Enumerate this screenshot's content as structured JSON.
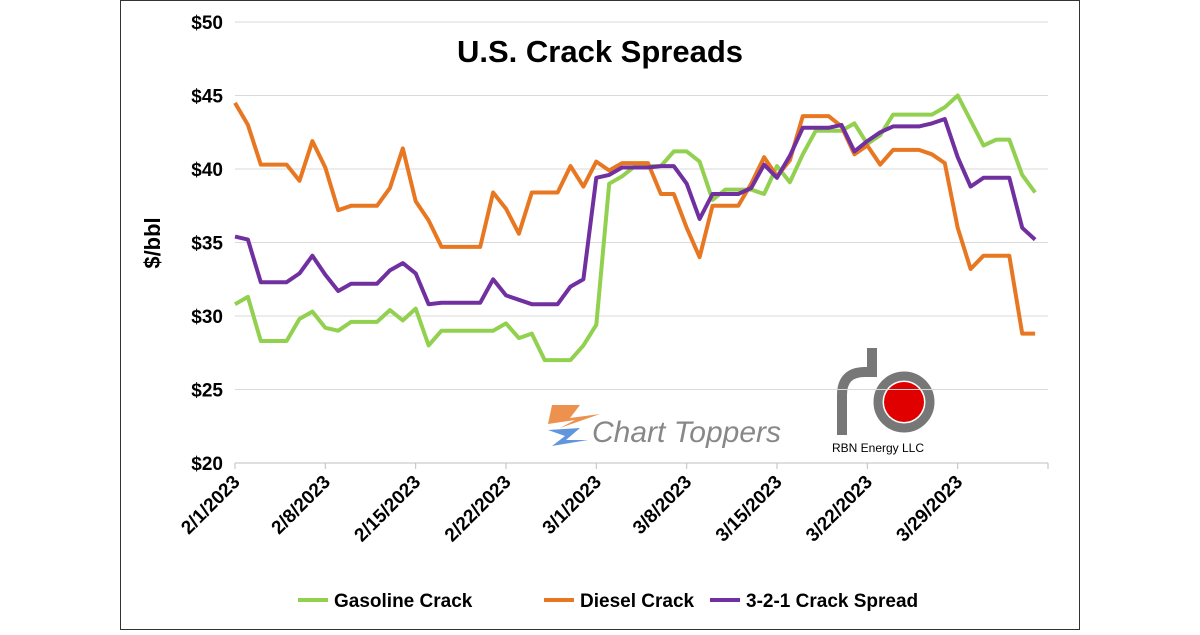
{
  "chart_data": {
    "type": "line",
    "title": "U.S. Crack Spreads",
    "y_label": "$/bbl",
    "logos": [
      "Chart Toppers",
      "RBN Energy LLC"
    ],
    "categories": [
      "2/1/2023",
      null,
      null,
      null,
      null,
      null,
      null,
      "2/8/2023",
      null,
      null,
      null,
      null,
      null,
      null,
      "2/15/2023",
      null,
      null,
      null,
      null,
      null,
      null,
      "2/22/2023",
      null,
      null,
      null,
      null,
      null,
      null,
      "3/1/2023",
      null,
      null,
      null,
      null,
      null,
      null,
      "3/8/2023",
      null,
      null,
      null,
      null,
      null,
      null,
      "3/15/2023",
      null,
      null,
      null,
      null,
      null,
      null,
      "3/22/2023",
      null,
      null,
      null,
      null,
      null,
      null,
      "3/29/2023",
      null,
      null,
      null,
      null,
      null,
      null
    ],
    "ylim": [
      20,
      50
    ],
    "yticks": [
      {
        "value": 20,
        "label": "$20"
      },
      {
        "value": 25,
        "label": "$25"
      },
      {
        "value": 30,
        "label": "$30"
      },
      {
        "value": 35,
        "label": "$35"
      },
      {
        "value": 40,
        "label": "$40"
      },
      {
        "value": 45,
        "label": "$45"
      },
      {
        "value": 50,
        "label": "$50"
      }
    ],
    "grid": true,
    "series": [
      {
        "name": "Gasoline Crack",
        "color": "#92d050",
        "values": [
          30.8,
          31.3,
          28.3,
          28.3,
          28.3,
          29.8,
          30.3,
          29.2,
          29.0,
          29.6,
          29.6,
          29.6,
          30.4,
          29.7,
          30.5,
          28.0,
          29.0,
          29.0,
          29.0,
          29.0,
          29.0,
          29.5,
          28.5,
          28.8,
          27.0,
          27.0,
          27.0,
          28.0,
          29.4,
          39.0,
          39.5,
          40.2,
          40.2,
          40.2,
          41.2,
          41.2,
          40.5,
          37.9,
          38.6,
          38.6,
          38.6,
          38.3,
          40.2,
          39.1,
          41.0,
          42.6,
          42.6,
          42.6,
          43.1,
          41.7,
          42.3,
          43.7,
          43.7,
          43.7,
          43.7,
          44.2,
          45.0,
          43.3,
          41.6,
          42.0,
          42.0,
          39.6,
          38.4
        ]
      },
      {
        "name": "Diesel Crack",
        "color": "#e87722",
        "values": [
          44.5,
          43.0,
          40.3,
          40.3,
          40.3,
          39.2,
          41.9,
          40.1,
          37.2,
          37.5,
          37.5,
          37.5,
          38.7,
          41.4,
          37.8,
          36.5,
          34.7,
          34.7,
          34.7,
          34.7,
          38.4,
          37.3,
          35.6,
          38.4,
          38.4,
          38.4,
          40.2,
          38.8,
          40.5,
          39.9,
          40.4,
          40.4,
          40.4,
          38.3,
          38.3,
          36.0,
          34.0,
          37.5,
          37.5,
          37.5,
          39.0,
          40.8,
          39.5,
          40.6,
          43.6,
          43.6,
          43.6,
          42.9,
          41.0,
          41.6,
          40.3,
          41.3,
          41.3,
          41.3,
          41.0,
          40.4,
          36.0,
          33.2,
          34.1,
          34.1,
          34.1,
          28.8,
          28.8
        ]
      },
      {
        "name": "3-2-1 Crack Spread",
        "color": "#7030a0",
        "values": [
          35.4,
          35.2,
          32.3,
          32.3,
          32.3,
          32.9,
          34.1,
          32.8,
          31.7,
          32.2,
          32.2,
          32.2,
          33.1,
          33.6,
          32.9,
          30.8,
          30.9,
          30.9,
          30.9,
          30.9,
          32.5,
          31.4,
          31.1,
          30.8,
          30.8,
          30.8,
          32.0,
          32.5,
          39.4,
          39.6,
          40.1,
          40.1,
          40.1,
          40.2,
          40.2,
          39.0,
          36.6,
          38.3,
          38.3,
          38.3,
          38.7,
          40.3,
          39.4,
          40.9,
          42.8,
          42.8,
          42.8,
          43.0,
          41.2,
          41.9,
          42.5,
          42.9,
          42.9,
          42.9,
          43.1,
          43.4,
          40.8,
          38.8,
          39.4,
          39.4,
          39.4,
          36.0,
          35.2
        ]
      }
    ]
  }
}
